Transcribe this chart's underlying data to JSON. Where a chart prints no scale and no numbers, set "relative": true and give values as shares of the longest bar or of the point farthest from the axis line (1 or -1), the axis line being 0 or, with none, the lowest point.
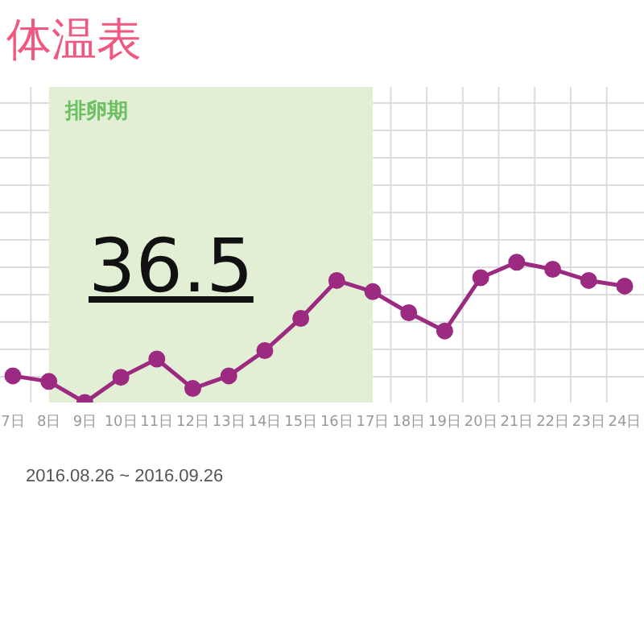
{
  "chart_data": {
    "type": "line",
    "title": "体温表",
    "categories": [
      "7日",
      "8日",
      "9日",
      "10日",
      "11日",
      "12日",
      "13日",
      "14日",
      "15日",
      "16日",
      "17日",
      "18日",
      "19日",
      "20日",
      "21日",
      "22日",
      "23日",
      "24日"
    ],
    "series": [
      {
        "color": "#9b2a80",
        "values": [
          0.19,
          0.15,
          0,
          0.18,
          0.31,
          0.1,
          0.19,
          0.37,
          0.6,
          0.87,
          0.79,
          0.64,
          0.51,
          0.89,
          1,
          0.95,
          0.87,
          0.83
        ]
      }
    ],
    "relative": true,
    "bands": [
      {
        "axis": "x",
        "from": "8日",
        "to": "17日",
        "label": "排卵期",
        "color": "#e3efd5"
      }
    ],
    "annotations": [
      "36.5",
      "2016.08.26 ~ 2016.09.26"
    ],
    "grid": true,
    "marker": "circle",
    "line_style": "solid"
  }
}
